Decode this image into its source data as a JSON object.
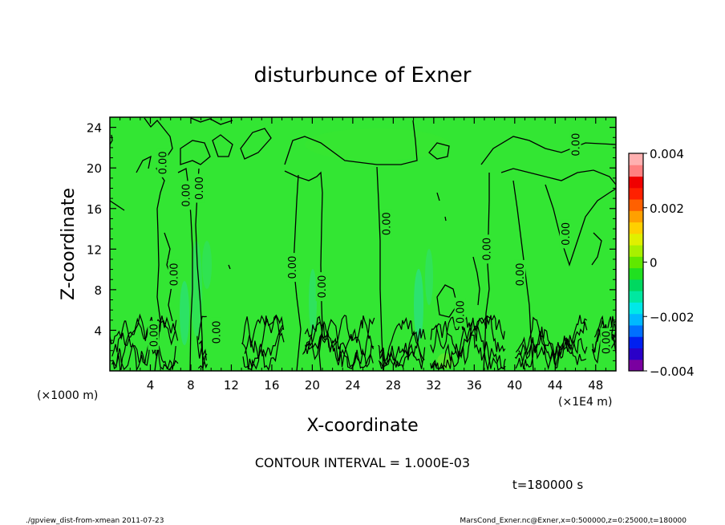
{
  "chart_data": {
    "type": "heatmap",
    "title": "disturbunce of Exner",
    "xlabel": "X-coordinate",
    "ylabel": "Z-coordinate",
    "x_unit_left": "(×1000 m)",
    "x_unit_right": "(×1E4 m)",
    "xlim": [
      0,
      50
    ],
    "ylim": [
      0,
      25
    ],
    "x_ticks": [
      4,
      8,
      12,
      16,
      20,
      24,
      28,
      32,
      36,
      40,
      44,
      48
    ],
    "y_ticks": [
      4,
      8,
      12,
      16,
      20,
      24
    ],
    "colorbar": {
      "range": [
        -0.004,
        0.004
      ],
      "tick_labels": [
        "0.004",
        "0.002",
        "0",
        "−0.002",
        "−0.004"
      ],
      "tick_values": [
        0.004,
        0.002,
        0,
        -0.002,
        -0.004
      ],
      "colors": [
        "#7a00a0",
        "#2a00c8",
        "#0020f0",
        "#0070ff",
        "#00b8ff",
        "#00e8e8",
        "#00e8a0",
        "#00d860",
        "#20e020",
        "#60e800",
        "#a8f000",
        "#e0f000",
        "#ffd000",
        "#ffa000",
        "#ff6000",
        "#ff2000",
        "#f00000",
        "#ff8080",
        "#ffb0b0"
      ]
    },
    "contour_labels": [
      {
        "text": "0.00",
        "x": 5.2,
        "z": 20.5
      },
      {
        "text": "0.00",
        "x": 46.0,
        "z": 22.3
      },
      {
        "text": "0.00",
        "x": 7.5,
        "z": 17.3
      },
      {
        "text": "0.00",
        "x": 8.8,
        "z": 18.0
      },
      {
        "text": "0.00",
        "x": 6.3,
        "z": 9.5
      },
      {
        "text": "0.00",
        "x": 10.5,
        "z": 3.8
      },
      {
        "text": "0.00",
        "x": 4.3,
        "z": 3.5
      },
      {
        "text": "0.00",
        "x": 18.0,
        "z": 10.2
      },
      {
        "text": "0.00",
        "x": 20.9,
        "z": 8.3
      },
      {
        "text": "0.00",
        "x": 27.3,
        "z": 14.5
      },
      {
        "text": "0.00",
        "x": 34.6,
        "z": 5.8
      },
      {
        "text": "0.00",
        "x": 37.2,
        "z": 12.0
      },
      {
        "text": "0.00",
        "x": 40.5,
        "z": 9.5
      },
      {
        "text": "0.00",
        "x": 45.0,
        "z": 13.5
      },
      {
        "text": "0.00",
        "x": 49.0,
        "z": 2.8
      }
    ],
    "annotations": {
      "contour_interval": "CONTOUR INTERVAL = 1.000E-03",
      "time": "t=180000 s",
      "footer_left": "./gpview_dist-from-xmean  2011-07-23",
      "footer_right": "MarsCond_Exner.nc@Exner,x=0:500000,z=0:25000,t=180000"
    },
    "field_color": "#33e633",
    "contour_color": "#000000"
  }
}
